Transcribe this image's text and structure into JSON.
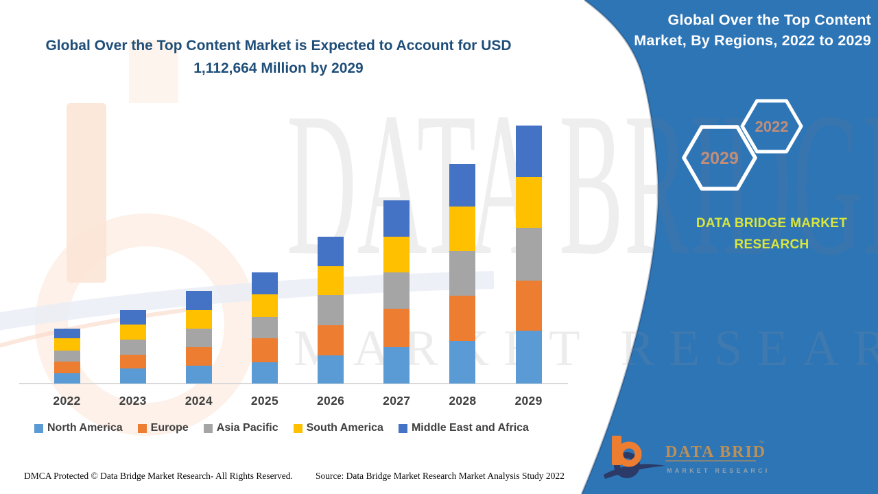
{
  "header": {
    "title_line1": "Global Over the Top Content Market is Expected to Account for USD",
    "title_line2": "1,112,664 Million by 2029"
  },
  "side_panel": {
    "heading_line1": "Global Over the Top Content",
    "heading_line2": "Market, By Regions, 2022 to 2029",
    "hex_front_label": "2029",
    "hex_back_label": "2022",
    "caption_line1": "DATA BRIDGE MARKET",
    "caption_line2": "RESEARCH",
    "logo": {
      "title": "DATA BRIDGE",
      "tm": "™",
      "subtitle": "MARKET RESEARCH"
    }
  },
  "watermarks": {
    "big_text": "DATA BRIDGE",
    "sub_text": "MARKET RESEARCH"
  },
  "footer": {
    "left": "DMCA Protected © Data Bridge Market Research- All Rights Reserved.",
    "right": "Source: Data Bridge Market Research Market Analysis Study 2022"
  },
  "colors": {
    "panel_blue": "#2E75B6",
    "title_navy": "#1F4E79",
    "caption_yellow": "#D9E63B",
    "hex_label": "#C18E79",
    "axis_line": "#D9D9D9",
    "label_gray": "#3F3F3F",
    "logo_orange": "#ED7D31",
    "logo_navy": "#2B3A67",
    "logo_tan": "#BE9055",
    "logo_sub_gray": "#93A2AD",
    "watermark_peach": "#FBE4D4"
  },
  "chart_data": {
    "type": "bar",
    "stacked": true,
    "title": "Global Over the Top Content Market, By Regions, 2022 to 2029",
    "annotation": "Total market expected to account for USD 1,112,664 Million by 2029",
    "units": "USD Million (estimated from bar heights; y-axis unlabeled)",
    "values_estimated": true,
    "xlabel": "",
    "ylabel": "",
    "ylim": [
      0,
      1120000
    ],
    "grid": false,
    "y_axis_labels": false,
    "legend_position": "bottom",
    "categories": [
      "2022",
      "2023",
      "2024",
      "2025",
      "2026",
      "2027",
      "2028",
      "2029"
    ],
    "series": [
      {
        "name": "North America",
        "color": "#5B9BD5",
        "values": [
          44400,
          65100,
          76900,
          91700,
          121300,
          156800,
          183500,
          227900
        ]
      },
      {
        "name": "Europe",
        "color": "#ED7D31",
        "values": [
          50300,
          59200,
          79900,
          103600,
          130200,
          165700,
          195300,
          216000
        ]
      },
      {
        "name": "Asia Pacific",
        "color": "#A5A5A5",
        "values": [
          47300,
          65100,
          79900,
          91700,
          130200,
          156800,
          192300,
          227900
        ]
      },
      {
        "name": "South America",
        "color": "#FFC000",
        "values": [
          53300,
          65100,
          79900,
          97700,
          124300,
          153900,
          192300,
          219000
        ]
      },
      {
        "name": "Middle East and Africa",
        "color": "#4472C4",
        "values": [
          41400,
          62100,
          82900,
          94700,
          127200,
          156800,
          183500,
          221900
        ]
      }
    ],
    "totals": [
      236700,
      316600,
      399500,
      479400,
      633200,
      790000,
      946900,
      1112700
    ]
  }
}
